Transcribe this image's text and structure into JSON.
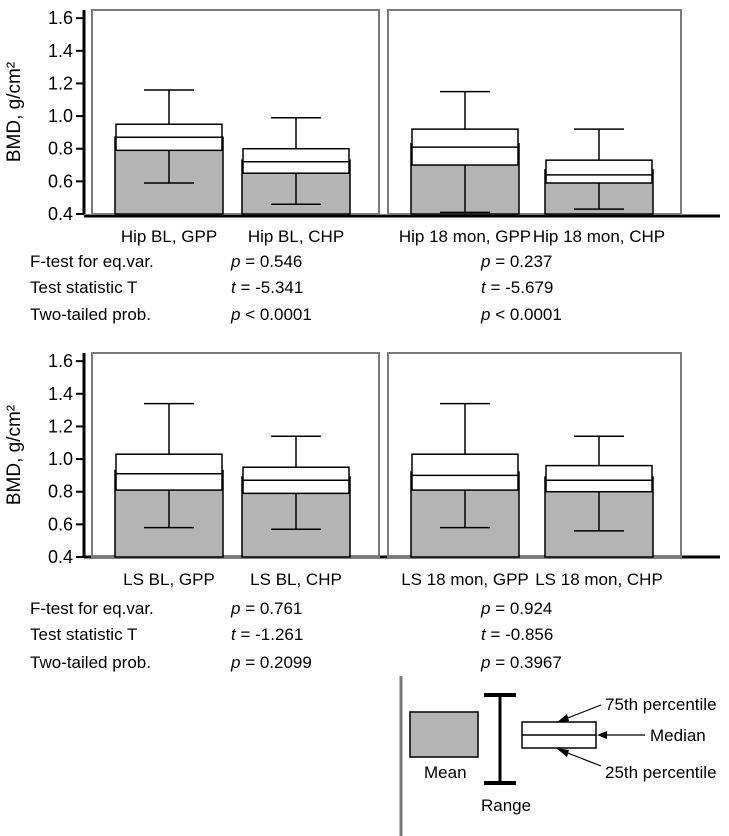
{
  "chart_data": [
    {
      "type": "boxplot",
      "ylabel": "BMD, g/cm²",
      "ylim": [
        0.4,
        1.65
      ],
      "yticks": [
        "1.6",
        "1.4",
        "1.2",
        "1.0",
        "0.8",
        "0.6",
        "0.4"
      ],
      "groups": [
        {
          "categories": [
            "Hip BL, GPP",
            "Hip BL, CHP"
          ],
          "boxes": [
            {
              "name": "Hip BL, GPP",
              "mean": 0.87,
              "p25": 0.79,
              "median": 0.87,
              "p75": 0.95,
              "min": 0.59,
              "max": 1.16
            },
            {
              "name": "Hip BL, CHP",
              "mean": 0.73,
              "p25": 0.65,
              "median": 0.72,
              "p75": 0.8,
              "min": 0.46,
              "max": 0.99
            }
          ],
          "stats": {
            "f_test": "p = 0.546",
            "t_stat": "t = -5.341",
            "two_tailed": "p < 0.0001"
          }
        },
        {
          "categories": [
            "Hip 18 mon, GPP",
            "Hip 18 mon, CHP"
          ],
          "boxes": [
            {
              "name": "Hip 18 mon, GPP",
              "mean": 0.83,
              "p25": 0.7,
              "median": 0.81,
              "p75": 0.92,
              "min": 0.41,
              "max": 1.15
            },
            {
              "name": "Hip 18 mon, CHP",
              "mean": 0.67,
              "p25": 0.59,
              "median": 0.64,
              "p75": 0.73,
              "min": 0.43,
              "max": 0.92
            }
          ],
          "stats": {
            "f_test": "p = 0.237",
            "t_stat": "t = -5.679",
            "two_tailed": "p < 0.0001"
          }
        }
      ]
    },
    {
      "type": "boxplot",
      "ylabel": "BMD, g/cm²",
      "ylim": [
        0.4,
        1.65
      ],
      "yticks": [
        "1.6",
        "1.4",
        "1.2",
        "1.0",
        "0.8",
        "0.6",
        "0.4"
      ],
      "groups": [
        {
          "categories": [
            "LS BL, GPP",
            "LS BL, CHP"
          ],
          "boxes": [
            {
              "name": "LS BL, GPP",
              "mean": 0.93,
              "p25": 0.81,
              "median": 0.91,
              "p75": 1.03,
              "min": 0.58,
              "max": 1.34
            },
            {
              "name": "LS BL, CHP",
              "mean": 0.89,
              "p25": 0.79,
              "median": 0.87,
              "p75": 0.95,
              "min": 0.57,
              "max": 1.14
            }
          ],
          "stats": {
            "f_test": "p = 0.761",
            "t_stat": "t = -1.261",
            "two_tailed": "p = 0.2099"
          }
        },
        {
          "categories": [
            "LS 18 mon, GPP",
            "LS 18 mon, CHP"
          ],
          "boxes": [
            {
              "name": "LS 18 mon, GPP",
              "mean": 0.92,
              "p25": 0.81,
              "median": 0.9,
              "p75": 1.03,
              "min": 0.58,
              "max": 1.34
            },
            {
              "name": "LS 18 mon, CHP",
              "mean": 0.89,
              "p25": 0.8,
              "median": 0.87,
              "p75": 0.96,
              "min": 0.56,
              "max": 1.14
            }
          ],
          "stats": {
            "f_test": "p = 0.924",
            "t_stat": "t = -0.856",
            "two_tailed": "p = 0.3967"
          }
        }
      ]
    }
  ],
  "stat_labels": {
    "f_test": "F-test for eq.var.",
    "t_stat": "Test statistic T",
    "two_tailed": "Two-tailed prob."
  },
  "legend": {
    "mean": "Mean",
    "range": "Range",
    "p75": "75th percentile",
    "median": "Median",
    "p25": "25th percentile"
  },
  "colors": {
    "mean_fill": "#b4b4b4",
    "frame": "#7a7a7a",
    "axis": "#000000"
  }
}
